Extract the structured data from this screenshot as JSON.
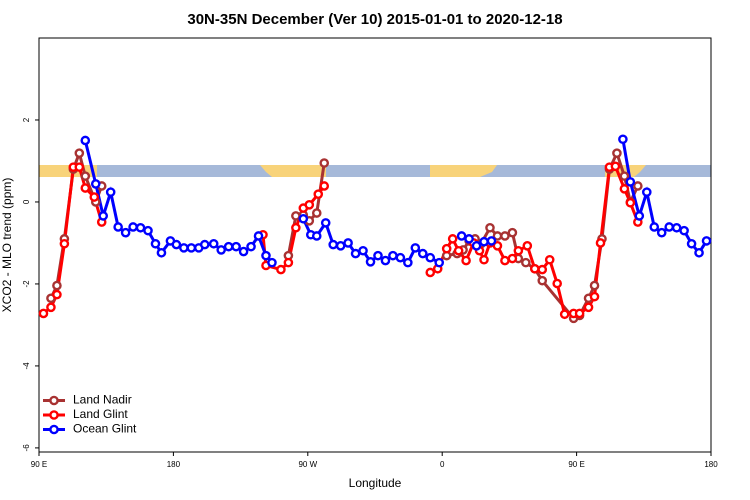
{
  "chart_data": {
    "type": "line",
    "title": "30N-35N December (Ver 10)   2015-01-01 to 2020-12-18",
    "x_label": "Longitude",
    "y_label": "XCO2 - MLO trend (ppm)",
    "xlim": [
      90,
      540
    ],
    "xticks": [
      {
        "value": 90,
        "label": "90 E"
      },
      180,
      {
        "value": 270,
        "label": "90 W"
      },
      {
        "value": 360,
        "label": "0"
      },
      {
        "value": 450,
        "label": "90 E"
      },
      {
        "value": 540,
        "label": "180"
      }
    ],
    "ylim": [
      -6.1,
      4.0
    ],
    "yticks": [
      -6,
      -4,
      -2,
      0,
      2
    ],
    "legend": "bottomleft",
    "series": [
      {
        "name": "Land Nadir",
        "color": "#a83232",
        "x": [
          98,
          102,
          107,
          113,
          117,
          121,
          128,
          132,
          null,
          257,
          262,
          267,
          271,
          276,
          281,
          null,
          363,
          370,
          374,
          378,
          382,
          386,
          392,
          397,
          402,
          407,
          411,
          416,
          422,
          427,
          448,
          452,
          458,
          462,
          467,
          472,
          477,
          482,
          486,
          491
        ],
        "values": [
          -2.35,
          -2.04,
          -0.9,
          0.8,
          1.19,
          0.63,
          0,
          0.39,
          null,
          -1.31,
          -0.34,
          -0.32,
          -0.46,
          -0.27,
          0.95,
          null,
          -1.31,
          -1.26,
          -1.17,
          -0.95,
          -0.9,
          -1.02,
          -0.63,
          -0.83,
          -0.83,
          -0.75,
          -1.38,
          -1.48,
          -1.63,
          -1.92,
          -2.84,
          -2.77,
          -2.35,
          -2.04,
          -0.9,
          0.8,
          1.19,
          0.63,
          0,
          0.39
        ]
      },
      {
        "name": "Land Glint",
        "color": "#ff0000",
        "x": [
          93,
          98,
          102,
          107,
          113,
          117,
          121,
          127,
          132,
          null,
          240,
          242,
          252,
          257,
          262,
          267,
          271,
          277,
          281,
          null,
          352,
          357,
          363,
          367,
          371,
          376,
          381,
          385,
          388,
          392,
          397,
          402,
          407,
          411,
          417,
          422,
          427,
          432,
          437,
          442,
          448,
          452,
          458,
          462,
          466,
          472,
          476,
          482,
          486,
          491
        ],
        "values": [
          -2.72,
          -2.57,
          -2.26,
          -1.02,
          0.85,
          0.85,
          0.34,
          0.12,
          -0.49,
          null,
          -0.8,
          -1.55,
          -1.65,
          -1.48,
          -0.63,
          -0.15,
          -0.07,
          0.19,
          0.39,
          null,
          -1.72,
          -1.63,
          -1.14,
          -0.9,
          -1.19,
          -1.43,
          -1.0,
          -1.19,
          -1.41,
          -1.0,
          -1.07,
          -1.43,
          -1.38,
          -1.19,
          -1.07,
          -1.63,
          -1.65,
          -1.41,
          -1.99,
          -2.74,
          -2.72,
          -2.72,
          -2.57,
          -2.31,
          -1.0,
          0.85,
          0.87,
          0.32,
          -0.02,
          -0.49
        ]
      },
      {
        "name": "Ocean Glint",
        "color": "#0000ff",
        "x": [
          121,
          128,
          133,
          138,
          143,
          148,
          153,
          158,
          163,
          168,
          172,
          178,
          182,
          187,
          192,
          197,
          201,
          207,
          212,
          217,
          222,
          227,
          232,
          237,
          242,
          246,
          null,
          267,
          272,
          276,
          282,
          287,
          292,
          297,
          302,
          307,
          312,
          317,
          322,
          327,
          332,
          337,
          342,
          347,
          352,
          358,
          null,
          373,
          378,
          383,
          388,
          393,
          null,
          481,
          486,
          492,
          497,
          502,
          507,
          512,
          517,
          522,
          527,
          532,
          537
        ],
        "values": [
          1.5,
          0.44,
          -0.34,
          0.24,
          -0.61,
          -0.75,
          -0.61,
          -0.63,
          -0.7,
          -1.02,
          -1.24,
          -0.95,
          -1.04,
          -1.12,
          -1.12,
          -1.12,
          -1.04,
          -1.02,
          -1.17,
          -1.09,
          -1.09,
          -1.21,
          -1.09,
          -0.83,
          -1.31,
          -1.48,
          null,
          -0.41,
          -0.8,
          -0.83,
          -0.51,
          -1.04,
          -1.07,
          -1.0,
          -1.26,
          -1.19,
          -1.46,
          -1.31,
          -1.43,
          -1.31,
          -1.36,
          -1.48,
          -1.12,
          -1.26,
          -1.36,
          -1.48,
          null,
          -0.83,
          -0.9,
          -1.07,
          -0.97,
          -0.95,
          null,
          1.53,
          0.49,
          -0.34,
          0.24,
          -0.61,
          -0.75,
          -0.61,
          -0.63,
          -0.7,
          -1.02,
          -1.24,
          -0.95
        ]
      }
    ]
  }
}
